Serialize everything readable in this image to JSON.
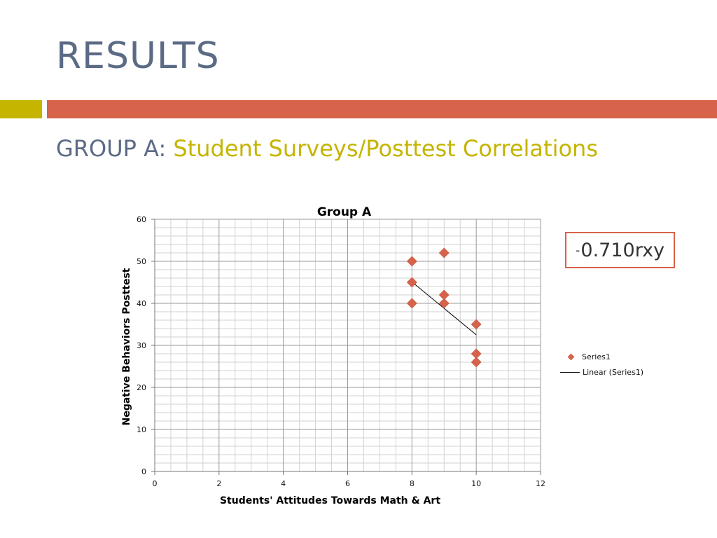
{
  "slide": {
    "title": "RESULTS",
    "subtitle_prefix": "GROUP A: ",
    "subtitle_highlight": "Student Surveys/Posttest Correlations",
    "correlation_sign": "-",
    "correlation_value": "0.710rxy"
  },
  "colors": {
    "title": "#5b6b86",
    "accent_gold": "#c5b400",
    "accent_orange": "#d7634a",
    "marker": "#d7634a",
    "grid": "#b8b8b8"
  },
  "chart_data": {
    "type": "scatter",
    "title": "Group A",
    "xlabel": "Students' Attitudes Towards Math & Art",
    "ylabel": "Negative Behaviors Posttest",
    "xlim": [
      0,
      12
    ],
    "ylim": [
      0,
      60
    ],
    "xticks": [
      0,
      2,
      4,
      6,
      8,
      10,
      12
    ],
    "yticks": [
      0,
      10,
      20,
      30,
      40,
      50,
      60
    ],
    "grid": true,
    "legend_position": "right",
    "series": [
      {
        "name": "Series1",
        "x": [
          8,
          8,
          8,
          9,
          9,
          9,
          10,
          10,
          10
        ],
        "y": [
          50,
          45,
          40,
          52,
          42,
          40,
          35,
          28,
          26
        ]
      }
    ],
    "trendline": {
      "name": "Linear (Series1)",
      "x": [
        8,
        10
      ],
      "y": [
        45.1,
        32.5
      ]
    }
  }
}
